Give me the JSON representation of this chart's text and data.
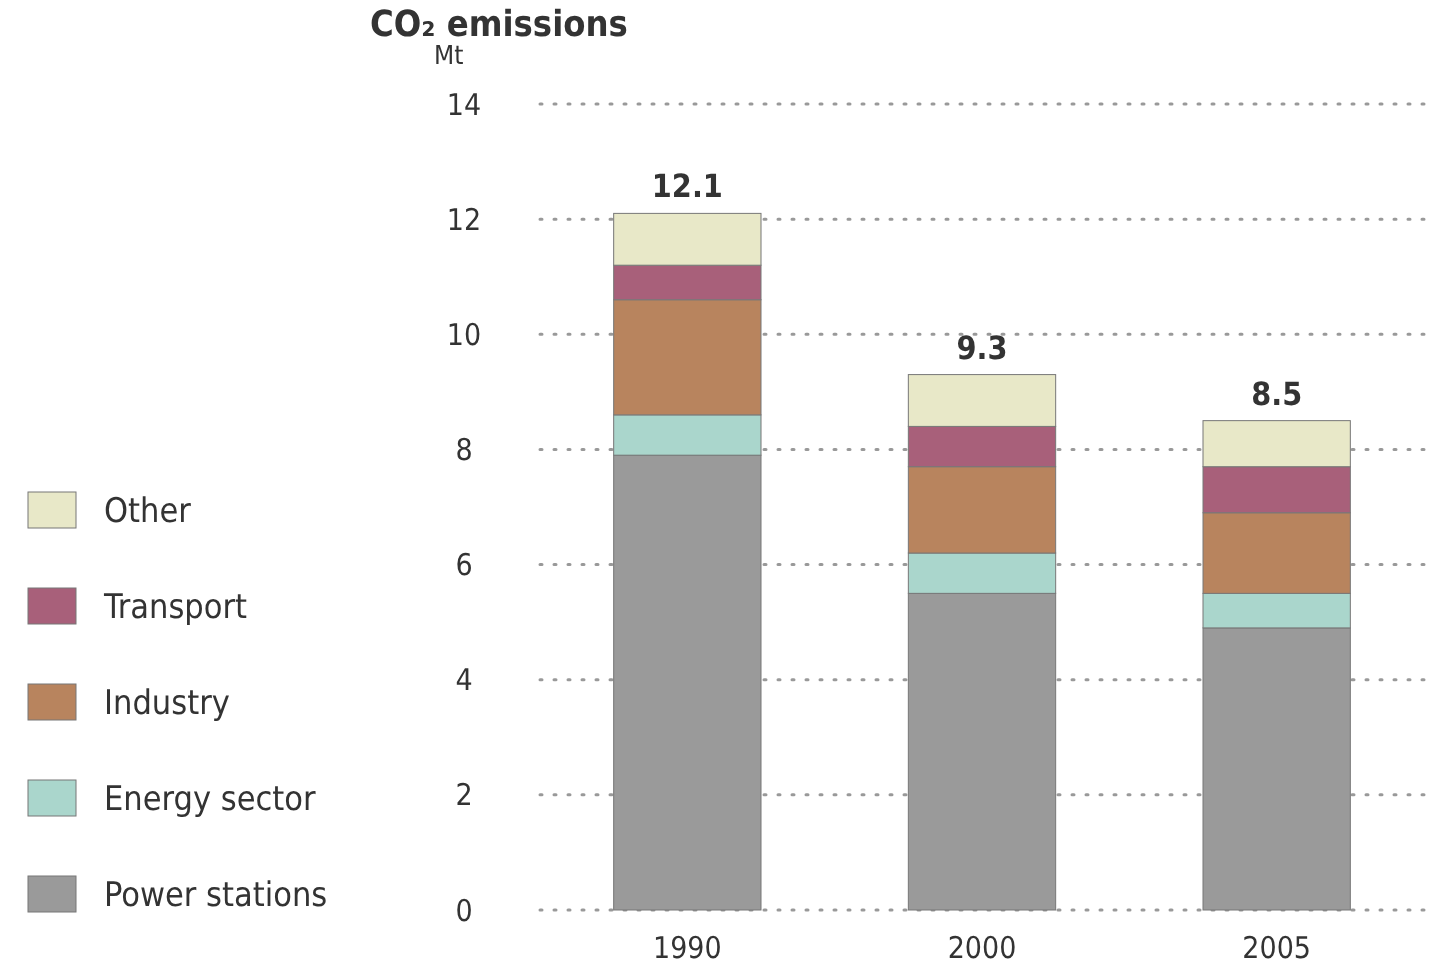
{
  "chart_data": {
    "type": "bar",
    "title": "CO₂ emissions",
    "ylabel": "Mt",
    "categories": [
      "1990",
      "2000",
      "2005"
    ],
    "stacked": true,
    "series": [
      {
        "name": "Power stations",
        "color": "#9a9a9a",
        "values": [
          7.9,
          5.5,
          4.9
        ]
      },
      {
        "name": "Energy sector",
        "color": "#aad6cc",
        "values": [
          0.7,
          0.7,
          0.6
        ]
      },
      {
        "name": "Industry",
        "color": "#b8845e",
        "values": [
          2.0,
          1.5,
          1.4
        ]
      },
      {
        "name": "Transport",
        "color": "#a8607a",
        "values": [
          0.6,
          0.7,
          0.8
        ]
      },
      {
        "name": "Other",
        "color": "#e8e8c8",
        "values": [
          0.9,
          0.9,
          0.8
        ]
      }
    ],
    "totals": [
      "12.1",
      "9.3",
      "8.5"
    ],
    "ylim": [
      0,
      14
    ],
    "yticks": [
      0,
      2,
      4,
      6,
      8,
      10,
      12,
      14
    ],
    "grid": "y",
    "legend": "left"
  }
}
